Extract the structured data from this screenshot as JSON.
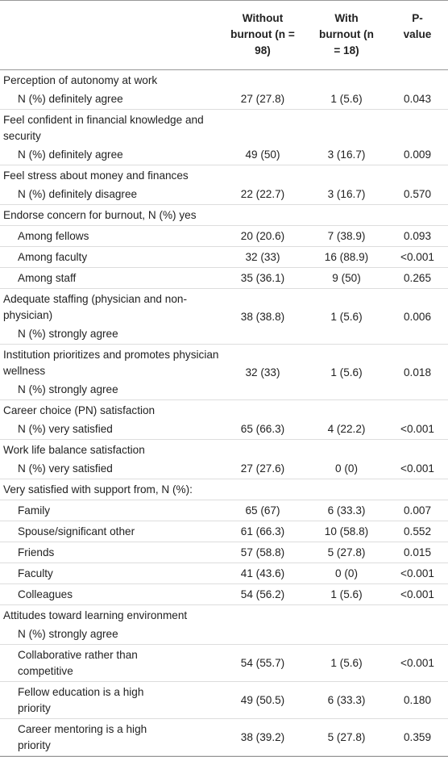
{
  "table": {
    "header": [
      "Without burnout (n = 98)",
      "With burnout (n = 18)",
      "P-value"
    ],
    "rows": [
      {
        "label": "Perception of autonomy at work",
        "sublabel": "N (%) definitely agree",
        "values": [
          "27 (27.8)",
          "1 (5.6)",
          "0.043"
        ]
      },
      {
        "label": "Feel confident in financial knowledge and security",
        "sublabel": "N (%) definitely agree",
        "values": [
          "49 (50)",
          "3 (16.7)",
          "0.009"
        ]
      },
      {
        "label": "Feel stress about money and finances",
        "sublabel": "N (%) definitely disagree",
        "values": [
          "22 (22.7)",
          "3 (16.7)",
          "0.570"
        ]
      },
      {
        "label": "Endorse concern for burnout, N (%) yes"
      },
      {
        "label": "Among fellows",
        "indent": true,
        "values": [
          "20 (20.6)",
          "7 (38.9)",
          "0.093"
        ]
      },
      {
        "label": "Among faculty",
        "indent": true,
        "values": [
          "32 (33)",
          "16 (88.9)",
          "<0.001"
        ]
      },
      {
        "label": "Among staff",
        "indent": true,
        "values": [
          "35 (36.1)",
          "9 (50)",
          "0.265"
        ]
      },
      {
        "label": "Adequate staffing (physician and non-physician)",
        "sublabel": "N (%) strongly agree",
        "values": [
          "38 (38.8)",
          "1 (5.6)",
          "0.006"
        ]
      },
      {
        "label": "Institution prioritizes and promotes physician wellness",
        "sublabel": "N (%) strongly agree",
        "values": [
          "32 (33)",
          "1 (5.6)",
          "0.018"
        ]
      },
      {
        "label": "Career choice (PN) satisfaction",
        "sublabel": "N (%) very satisfied",
        "values": [
          "65 (66.3)",
          "4 (22.2)",
          "<0.001"
        ]
      },
      {
        "label": "Work life balance satisfaction",
        "sublabel": "N (%) very satisfied",
        "values": [
          "27 (27.6)",
          "0 (0)",
          "<0.001"
        ]
      },
      {
        "label": "Very satisfied with support from, N (%):"
      },
      {
        "label": "Family",
        "indent": true,
        "values": [
          "65 (67)",
          "6 (33.3)",
          "0.007"
        ]
      },
      {
        "label": "Spouse/significant other",
        "indent": true,
        "values": [
          "61 (66.3)",
          "10 (58.8)",
          "0.552"
        ]
      },
      {
        "label": "Friends",
        "indent": true,
        "values": [
          "57 (58.8)",
          "5 (27.8)",
          "0.015"
        ]
      },
      {
        "label": "Faculty",
        "indent": true,
        "values": [
          "41 (43.6)",
          "0 (0)",
          "<0.001"
        ]
      },
      {
        "label": "Colleagues",
        "indent": true,
        "values": [
          "54 (56.2)",
          "1 (5.6)",
          "<0.001"
        ]
      },
      {
        "label": "Attitudes toward learning environment",
        "sublabel": "N (%) strongly agree"
      },
      {
        "label": "Collaborative rather than competitive",
        "indent": true,
        "values": [
          "54 (55.7)",
          "1 (5.6)",
          "<0.001"
        ]
      },
      {
        "label": "Fellow education is a high priority",
        "indent": true,
        "values": [
          "49 (50.5)",
          "6 (33.3)",
          "0.180"
        ]
      },
      {
        "label": "Career mentoring is a high priority",
        "indent": true,
        "values": [
          "38 (39.2)",
          "5 (27.8)",
          "0.359"
        ]
      }
    ]
  }
}
